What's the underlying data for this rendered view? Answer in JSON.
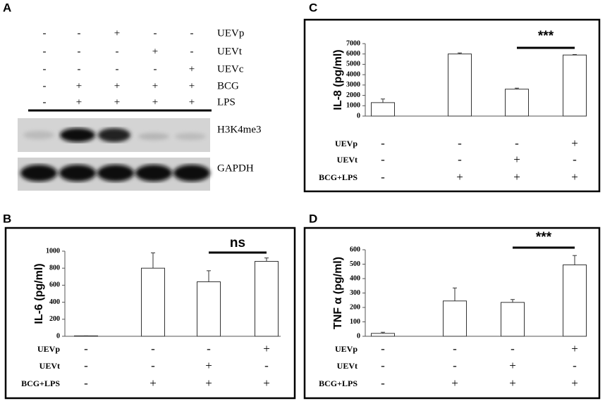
{
  "blot": {
    "panel": "A",
    "rows": [
      {
        "label": "UEVp",
        "signs": [
          "-",
          "-",
          "+",
          "-",
          "-"
        ]
      },
      {
        "label": "UEVt",
        "signs": [
          "-",
          "-",
          "-",
          "+",
          "-"
        ]
      },
      {
        "label": "UEVc",
        "signs": [
          "-",
          "-",
          "-",
          "-",
          "+"
        ]
      },
      {
        "label": "BCG",
        "signs": [
          "-",
          "+",
          "+",
          "+",
          "+"
        ]
      },
      {
        "label": "LPS",
        "signs": [
          "-",
          "+",
          "+",
          "+",
          "+"
        ]
      }
    ],
    "bands": [
      "H3K4me3",
      "GAPDH"
    ]
  },
  "chart_data": [
    {
      "type": "bar",
      "panel": "C",
      "y_label": "IL-8 (pg/ml)",
      "ylim": [
        0,
        7000
      ],
      "yticks": [
        0,
        1000,
        2000,
        3000,
        4000,
        5000,
        6000,
        7000
      ],
      "values": [
        1300,
        6000,
        2600,
        5900
      ],
      "errors": [
        350,
        100,
        100,
        50
      ],
      "significance": "***",
      "conditions": [
        {
          "label": "UEVp",
          "signs": [
            "-",
            "-",
            "-",
            "+"
          ]
        },
        {
          "label": "UEVt",
          "signs": [
            "-",
            "-",
            "+",
            "-"
          ]
        },
        {
          "label": "BCG+LPS",
          "signs": [
            "-",
            "+",
            "+",
            "+"
          ]
        }
      ]
    },
    {
      "type": "bar",
      "panel": "B",
      "y_label": "IL-6 (pg/ml)",
      "ylim": [
        0,
        1000
      ],
      "yticks": [
        0,
        200,
        400,
        600,
        800,
        1000
      ],
      "values": [
        5,
        800,
        640,
        880
      ],
      "errors": [
        0,
        180,
        130,
        40
      ],
      "significance": "ns",
      "conditions": [
        {
          "label": "UEVp",
          "signs": [
            "-",
            "-",
            "-",
            "+"
          ]
        },
        {
          "label": "UEVt",
          "signs": [
            "-",
            "-",
            "+",
            "-"
          ]
        },
        {
          "label": "BCG+LPS",
          "signs": [
            "-",
            "+",
            "+",
            "+"
          ]
        }
      ]
    },
    {
      "type": "bar",
      "panel": "D",
      "y_label": "TNF α (pg/ml)",
      "ylim": [
        0,
        600
      ],
      "yticks": [
        0,
        100,
        200,
        300,
        400,
        500,
        600
      ],
      "values": [
        20,
        245,
        235,
        495
      ],
      "errors": [
        8,
        90,
        20,
        65
      ],
      "significance": "***",
      "conditions": [
        {
          "label": "UEVp",
          "signs": [
            "-",
            "-",
            "-",
            "+"
          ]
        },
        {
          "label": "UEVt",
          "signs": [
            "-",
            "-",
            "+",
            "-"
          ]
        },
        {
          "label": "BCG+LPS",
          "signs": [
            "-",
            "+",
            "+",
            "+"
          ]
        }
      ]
    }
  ]
}
